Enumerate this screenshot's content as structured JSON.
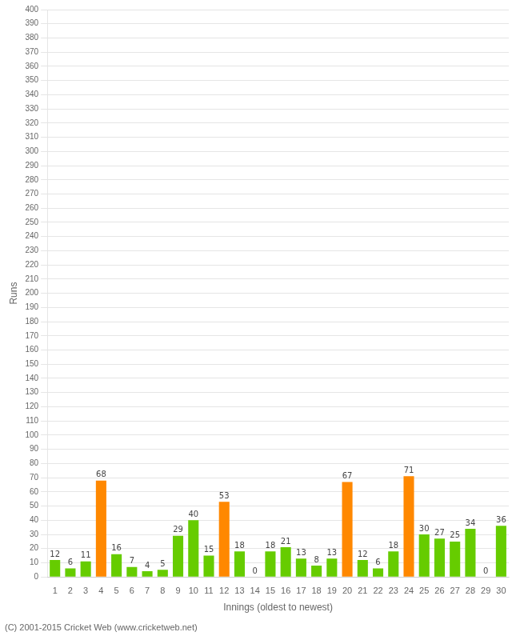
{
  "chart_data": {
    "type": "bar",
    "categories": [
      "1",
      "2",
      "3",
      "4",
      "5",
      "6",
      "7",
      "8",
      "9",
      "10",
      "11",
      "12",
      "13",
      "14",
      "15",
      "16",
      "17",
      "18",
      "19",
      "20",
      "21",
      "22",
      "23",
      "24",
      "25",
      "26",
      "27",
      "28",
      "29",
      "30"
    ],
    "values": [
      12,
      6,
      11,
      68,
      16,
      7,
      4,
      5,
      29,
      40,
      15,
      53,
      18,
      0,
      18,
      21,
      13,
      8,
      13,
      67,
      12,
      6,
      18,
      71,
      30,
      27,
      25,
      34,
      0,
      36
    ],
    "colors": [
      "#66cc00",
      "#66cc00",
      "#66cc00",
      "#ff8800",
      "#66cc00",
      "#66cc00",
      "#66cc00",
      "#66cc00",
      "#66cc00",
      "#66cc00",
      "#66cc00",
      "#ff8800",
      "#66cc00",
      "#66cc00",
      "#66cc00",
      "#66cc00",
      "#66cc00",
      "#66cc00",
      "#66cc00",
      "#ff8800",
      "#66cc00",
      "#66cc00",
      "#66cc00",
      "#ff8800",
      "#66cc00",
      "#66cc00",
      "#66cc00",
      "#66cc00",
      "#66cc00",
      "#66cc00"
    ],
    "xlabel": "Innings (oldest to newest)",
    "ylabel": "Runs",
    "ylim": [
      0,
      400
    ],
    "yticks": [
      0,
      10,
      20,
      30,
      40,
      50,
      60,
      70,
      80,
      90,
      100,
      110,
      120,
      130,
      140,
      150,
      160,
      170,
      180,
      190,
      200,
      210,
      220,
      230,
      240,
      250,
      260,
      270,
      280,
      290,
      300,
      310,
      320,
      330,
      340,
      350,
      360,
      370,
      380,
      390,
      400
    ],
    "grid": true,
    "data_labels": true,
    "annotations": [
      "(C) 2001-2015 Cricket Web (www.cricketweb.net)"
    ]
  }
}
